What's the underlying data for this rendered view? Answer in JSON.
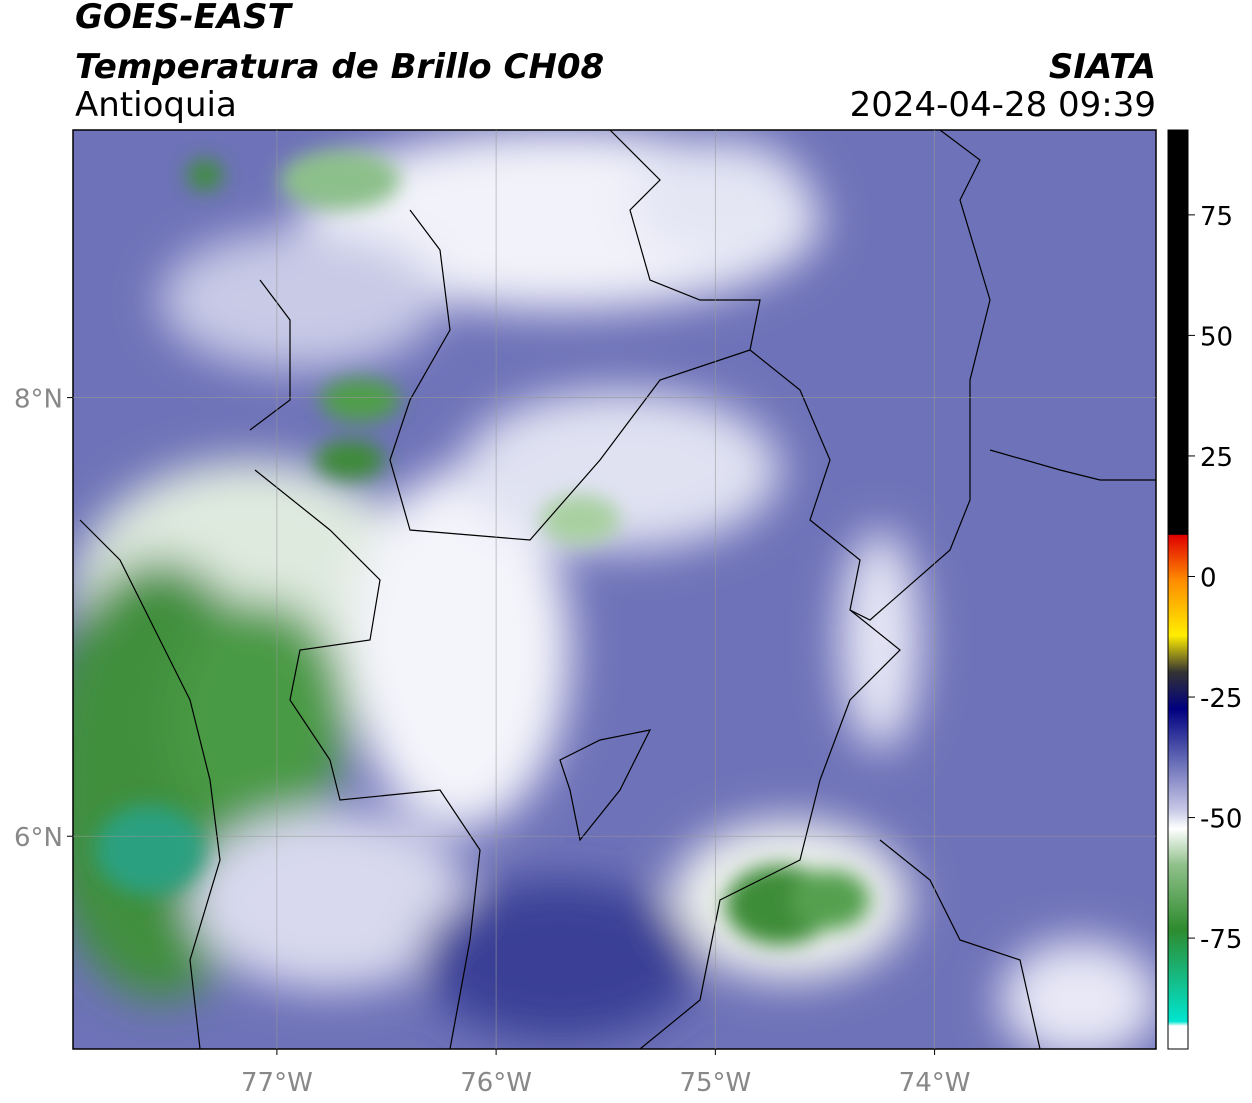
{
  "header": {
    "title": "GOES-EAST",
    "subtitle": "Temperatura de Brillo CH08",
    "region": "Antioquia",
    "source": "SIATA",
    "timestamp": "2024-04-28 09:39"
  },
  "map": {
    "xlim": [
      -77.93,
      -72.99
    ],
    "ylim": [
      5.03,
      9.22
    ],
    "xticks": [
      {
        "value": -77,
        "label": "77°W"
      },
      {
        "value": -76,
        "label": "76°W"
      },
      {
        "value": -75,
        "label": "75°W"
      },
      {
        "value": -74,
        "label": "74°W"
      }
    ],
    "yticks": [
      {
        "value": 8,
        "label": "8°N"
      },
      {
        "value": 6,
        "label": "6°N"
      }
    ]
  },
  "colorbar": {
    "lim": [
      -98,
      92.6
    ],
    "ticks": [
      75,
      50,
      25,
      0,
      -25,
      -50,
      -75
    ]
  }
}
